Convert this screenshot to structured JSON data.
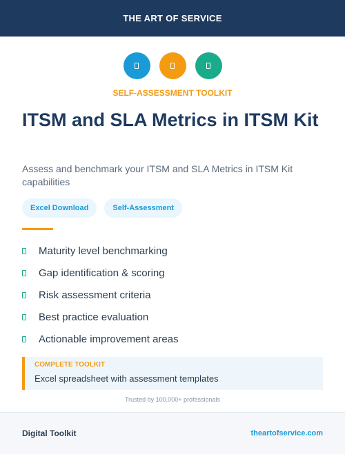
{
  "header": {
    "brand": "THE ART OF SERVICE"
  },
  "icons": [
    {
      "name": "file-icon",
      "color": "#1a9ad6"
    },
    {
      "name": "file-icon",
      "color": "#f39c12"
    },
    {
      "name": "file-icon",
      "color": "#1aab8a"
    }
  ],
  "hero": {
    "eyebrow": "SELF-ASSESSMENT TOOLKIT",
    "title": "ITSM and SLA Metrics in ITSM Kit",
    "subtitle": "Assess and benchmark your ITSM and SLA Metrics in ITSM Kit capabilities"
  },
  "tags": [
    "Excel Download",
    "Self-Assessment"
  ],
  "features": [
    "Maturity level benchmarking",
    "Gap identification & scoring",
    "Risk assessment criteria",
    "Best practice evaluation",
    "Actionable improvement areas"
  ],
  "callout": {
    "label": "COMPLETE TOOLKIT",
    "text": "Excel spreadsheet with assessment templates"
  },
  "trusted": "Trusted by 100,000+ professionals",
  "footer": {
    "left": "Digital Toolkit",
    "right": "theartofservice.com"
  },
  "colors": {
    "navy": "#1e3a5f",
    "orange": "#f39c12",
    "blue": "#1a9ad6",
    "green": "#1aab8a"
  }
}
